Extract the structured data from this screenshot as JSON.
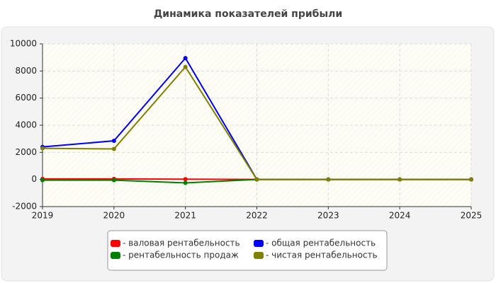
{
  "chart_data": {
    "type": "line",
    "title": "Динамика показателей прибыли",
    "x": [
      2019,
      2020,
      2021,
      2022,
      2023,
      2024,
      2025
    ],
    "xlim": [
      2019,
      2025
    ],
    "xticks": [
      2019,
      2020,
      2021,
      2022,
      2023,
      2024,
      2025
    ],
    "ylim": [
      -2000,
      10000
    ],
    "yticks": [
      -2000,
      0,
      2000,
      4000,
      6000,
      8000,
      10000
    ],
    "grid": true,
    "legend": "bottom",
    "series": [
      {
        "name": "- валовая рентабельность",
        "color": "#ff0000",
        "values": [
          40,
          40,
          20,
          0,
          0,
          0,
          0
        ]
      },
      {
        "name": "- общая рентабельность",
        "color": "#0000ff",
        "values": [
          2400,
          2850,
          8950,
          0,
          0,
          0,
          0
        ]
      },
      {
        "name": "- рентабельность продаж",
        "color": "#008000",
        "values": [
          -50,
          -50,
          -250,
          0,
          0,
          0,
          0
        ]
      },
      {
        "name": "- чистая рентабельность",
        "color": "#808000",
        "values": [
          2300,
          2250,
          8300,
          0,
          0,
          0,
          0
        ]
      }
    ]
  }
}
